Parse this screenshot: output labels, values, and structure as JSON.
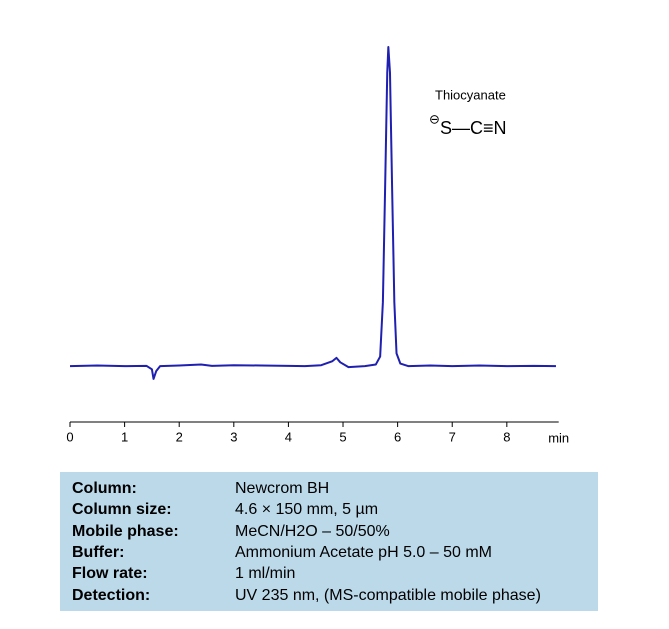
{
  "chart_data": {
    "type": "line",
    "color": "#1f1fb0",
    "x": [
      0,
      0.5,
      1.0,
      1.4,
      1.5,
      1.53,
      1.58,
      1.65,
      2.0,
      2.4,
      2.6,
      3.0,
      3.5,
      4.0,
      4.3,
      4.6,
      4.8,
      4.88,
      4.95,
      5.1,
      5.4,
      5.6,
      5.68,
      5.73,
      5.77,
      5.81,
      5.83,
      5.86,
      5.9,
      5.94,
      5.98,
      6.05,
      6.2,
      6.6,
      7.0,
      7.5,
      8.0,
      8.5,
      8.9
    ],
    "values": [
      0,
      0.2,
      0,
      0.1,
      -1,
      -4,
      -1.5,
      0,
      0.2,
      0.5,
      0.1,
      0.3,
      0.2,
      0.1,
      0,
      0.3,
      1.5,
      2.6,
      1.2,
      -0.3,
      0,
      0.5,
      3,
      20,
      55,
      92,
      100,
      92,
      55,
      20,
      4,
      0.8,
      0,
      0.2,
      0,
      0.2,
      0,
      0.1,
      0
    ],
    "xlim": [
      0,
      8.95
    ],
    "xticks": [
      0,
      1,
      2,
      3,
      4,
      5,
      6,
      7,
      8
    ],
    "x_label": "min",
    "ylim": [
      -17.5,
      100
    ],
    "annotations": {
      "name": "Thiocyanate",
      "charge": "⊖",
      "structure": "S—C≡N"
    }
  },
  "conditions": {
    "rows": [
      [
        "Column:",
        "Newcrom BH"
      ],
      [
        "Column size:",
        "4.6 × 150 mm, 5 µm"
      ],
      [
        "Mobile phase:",
        "MeCN/H2O – 50/50%"
      ],
      [
        "Buffer:",
        "Ammonium Acetate pH 5.0 – 50 mM"
      ],
      [
        "Flow rate:",
        "1 ml/min"
      ],
      [
        "Detection:",
        "UV  235 nm, (MS-compatible mobile phase)"
      ]
    ]
  }
}
